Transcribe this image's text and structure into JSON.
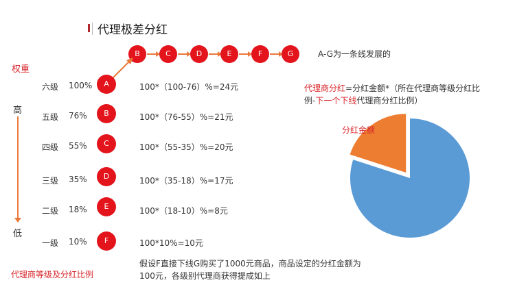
{
  "title": "代理极差分红",
  "colors": {
    "accent": "#e3141c",
    "arrow": "#e8793b",
    "pie_main": "#5b9bd5",
    "pie_slice": "#ed7d31",
    "label_red": "#d9262b"
  },
  "chain": {
    "nodes": [
      "B",
      "C",
      "D",
      "E",
      "F",
      "G"
    ],
    "note": "A-G为一条线发展的"
  },
  "axis": {
    "weight": "权重",
    "high": "高",
    "low": "低"
  },
  "levels": [
    {
      "level": "六级",
      "pct": "100%",
      "node": "A",
      "formula": "100*（100-76）%=24元"
    },
    {
      "level": "五级",
      "pct": "76%",
      "node": "B",
      "formula": "100*（76-55）%=21元"
    },
    {
      "level": "四级",
      "pct": "55%",
      "node": "C",
      "formula": "100*（55-35）%=20元"
    },
    {
      "level": "三级",
      "pct": "35%",
      "node": "D",
      "formula": "100*（35-18）%=17元"
    },
    {
      "level": "二级",
      "pct": "18%",
      "node": "E",
      "formula": "100*（18-10）%=8元"
    },
    {
      "level": "一级",
      "pct": "10%",
      "node": "F",
      "formula": "100*10%=10元"
    }
  ],
  "footnote_left": "代理商等级及分红比例",
  "footnote_right": "假设F直接下线G购买了1000元商品，商品设定的分红金额为100元，各级别代理商获得提成如上",
  "formula": {
    "part1": "代理商分红",
    "part2": "=分红金额*（所在代理商等级分红比例-",
    "part3": "下一个下线",
    "part4": "代理商分红比例）"
  },
  "pie": {
    "slice_label": "分红金额",
    "slice_fraction": 0.2
  }
}
